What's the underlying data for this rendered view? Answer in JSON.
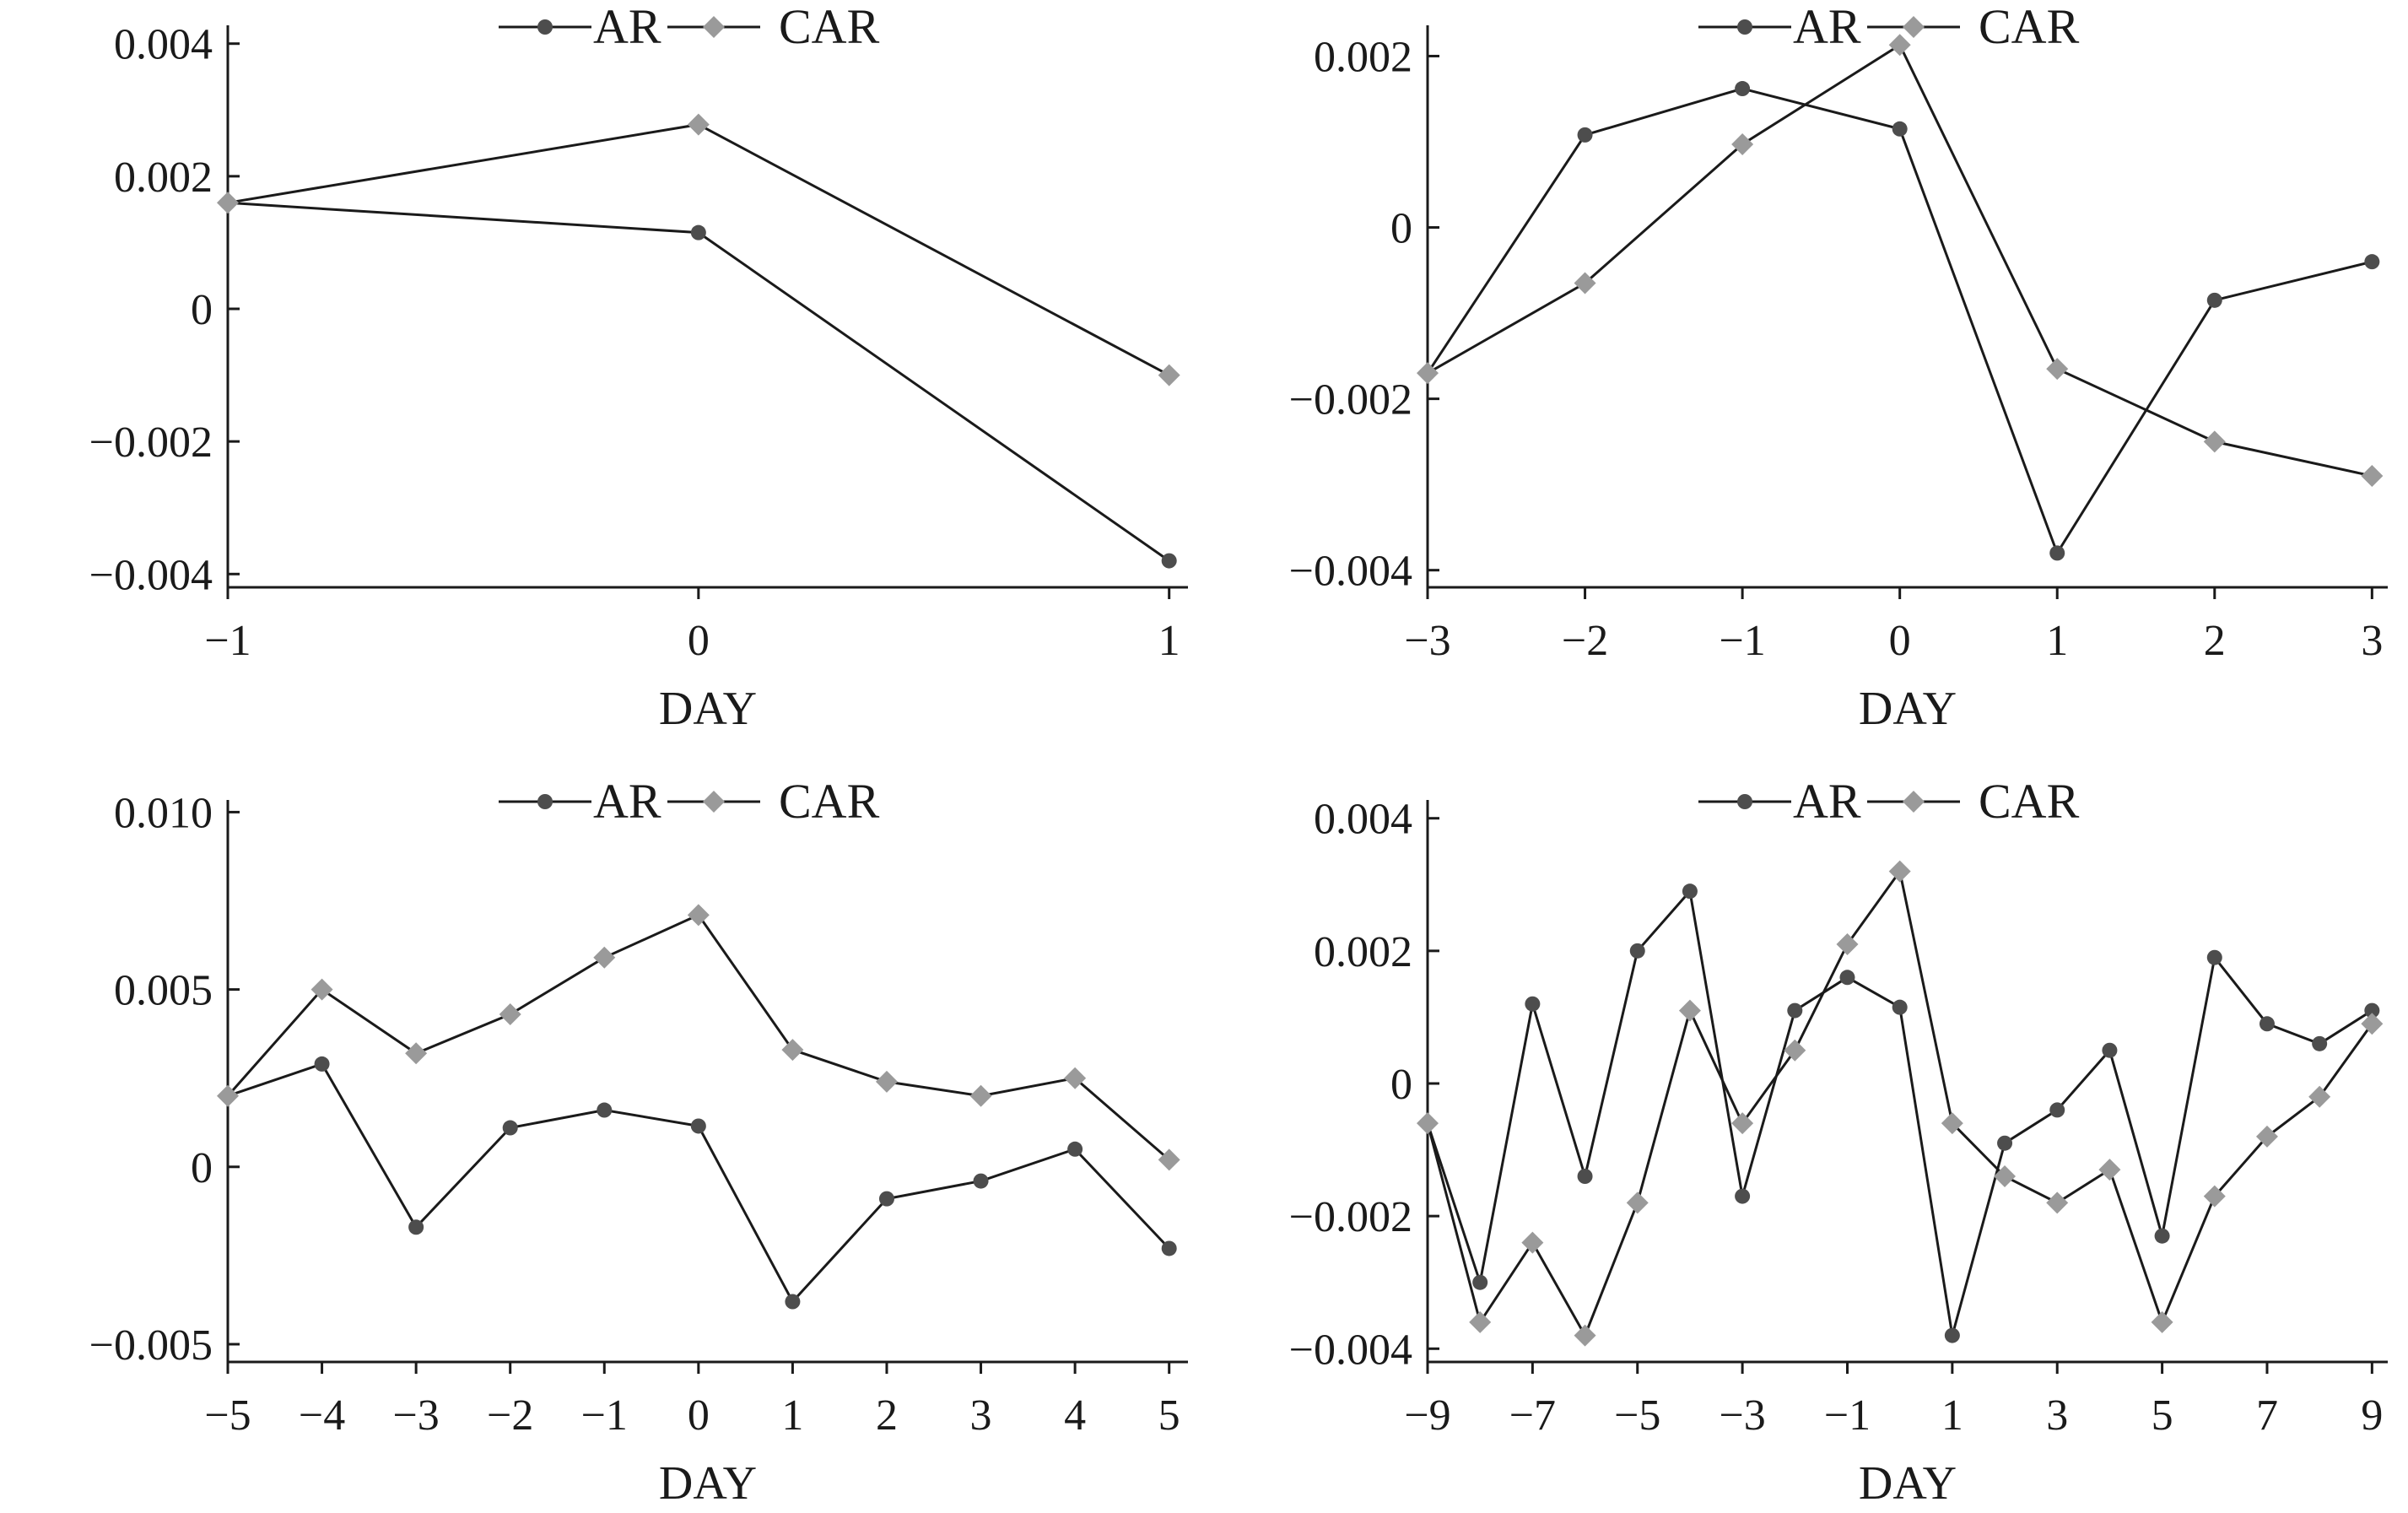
{
  "colors": {
    "line": "#1a1a1a",
    "ar_marker": "#4d4d4d",
    "car_marker": "#9a9a9a"
  },
  "chart_data": [
    {
      "type": "line",
      "xlabel": "DAY",
      "ylabel": "",
      "x": [
        -1,
        0,
        1
      ],
      "xticks": [
        -1,
        0,
        1
      ],
      "xtick_labels": [
        "−1",
        "0",
        "1"
      ],
      "xlim": [
        -1,
        1.04
      ],
      "ylim": [
        -0.0042,
        0.0042
      ],
      "yticks": [
        -0.004,
        -0.002,
        0,
        0.002,
        0.004
      ],
      "ytick_labels": [
        "−0.004",
        "−0.002",
        "0",
        "0.002",
        "0.004"
      ],
      "legend": "top-center",
      "grid": false,
      "series": [
        {
          "name": "AR",
          "marker": "circle",
          "values": [
            0.0016,
            0.00115,
            -0.0038
          ]
        },
        {
          "name": "CAR",
          "marker": "diamond",
          "values": [
            0.0016,
            0.00278,
            -0.001
          ]
        }
      ]
    },
    {
      "type": "line",
      "xlabel": "DAY",
      "ylabel": "",
      "x": [
        -3,
        -2,
        -1,
        0,
        1,
        2,
        3
      ],
      "xticks": [
        -3,
        -2,
        -1,
        0,
        1,
        2,
        3
      ],
      "xtick_labels": [
        "−3",
        "−2",
        "−1",
        "0",
        "1",
        "2",
        "3"
      ],
      "xlim": [
        -3,
        3.1
      ],
      "ylim": [
        -0.0042,
        0.0023
      ],
      "yticks": [
        -0.004,
        -0.002,
        0,
        0.002
      ],
      "ytick_labels": [
        "−0.004",
        "−0.002",
        "0",
        "0.002"
      ],
      "legend": "top-center",
      "grid": false,
      "series": [
        {
          "name": "AR",
          "marker": "circle",
          "values": [
            -0.0017,
            0.00108,
            0.00162,
            0.00115,
            -0.0038,
            -0.00085,
            -0.0004
          ]
        },
        {
          "name": "CAR",
          "marker": "diamond",
          "values": [
            -0.0017,
            -0.00065,
            0.00097,
            0.00213,
            -0.00165,
            -0.0025,
            -0.0029
          ]
        }
      ]
    },
    {
      "type": "line",
      "xlabel": "DAY",
      "ylabel": "",
      "x": [
        -5,
        -4,
        -3,
        -2,
        -1,
        0,
        1,
        2,
        3,
        4,
        5
      ],
      "xticks": [
        -5,
        -4,
        -3,
        -2,
        -1,
        0,
        1,
        2,
        3,
        4,
        5
      ],
      "xtick_labels": [
        "−5",
        "−4",
        "−3",
        "−2",
        "−1",
        "0",
        "1",
        "2",
        "3",
        "4",
        "5"
      ],
      "xlim": [
        -5,
        5.2
      ],
      "ylim": [
        -0.0055,
        0.0102
      ],
      "yticks": [
        -0.005,
        0,
        0.005,
        0.01
      ],
      "ytick_labels": [
        "−0.005",
        "0",
        "0.005",
        "0.010"
      ],
      "legend": "top-center",
      "grid": false,
      "series": [
        {
          "name": "AR",
          "marker": "circle",
          "values": [
            0.002,
            0.0029,
            -0.0017,
            0.0011,
            0.0016,
            0.00115,
            -0.0038,
            -0.0009,
            -0.0004,
            0.0005,
            -0.0023
          ]
        },
        {
          "name": "CAR",
          "marker": "diamond",
          "values": [
            0.002,
            0.005,
            0.0032,
            0.0043,
            0.0059,
            0.0071,
            0.0033,
            0.0024,
            0.002,
            0.0025,
            0.0002
          ]
        }
      ]
    },
    {
      "type": "line",
      "xlabel": "DAY",
      "ylabel": "",
      "x": [
        -9,
        -8,
        -7,
        -6,
        -5,
        -4,
        -3,
        -2,
        -1,
        0,
        1,
        2,
        3,
        4,
        5,
        6,
        7,
        8,
        9
      ],
      "xticks": [
        -9,
        -7,
        -5,
        -3,
        -1,
        1,
        3,
        5,
        7,
        9
      ],
      "xtick_labels": [
        "−9",
        "−7",
        "−5",
        "−3",
        "−1",
        "1",
        "3",
        "5",
        "7",
        "9"
      ],
      "xlim": [
        -9,
        9.3
      ],
      "ylim": [
        -0.0042,
        0.0042
      ],
      "yticks": [
        -0.004,
        -0.002,
        0,
        0.002,
        0.004
      ],
      "ytick_labels": [
        "−0.004",
        "−0.002",
        "0",
        "0.002",
        "0.004"
      ],
      "legend": "top-center",
      "grid": false,
      "series": [
        {
          "name": "AR",
          "marker": "circle",
          "values": [
            -0.0006,
            -0.003,
            0.0012,
            -0.0014,
            0.002,
            0.0029,
            -0.0017,
            0.0011,
            0.0016,
            0.00115,
            -0.0038,
            -0.0009,
            -0.0004,
            0.0005,
            -0.0023,
            0.0019,
            0.0009,
            0.0006,
            0.0011
          ]
        },
        {
          "name": "CAR",
          "marker": "diamond",
          "values": [
            -0.0006,
            -0.0036,
            -0.0024,
            -0.0038,
            -0.0018,
            0.0011,
            -0.0006,
            0.0005,
            0.0021,
            0.0032,
            -0.0006,
            -0.0014,
            -0.0018,
            -0.0013,
            -0.0036,
            -0.0017,
            -0.0008,
            -0.0002,
            0.0009
          ]
        }
      ]
    }
  ]
}
